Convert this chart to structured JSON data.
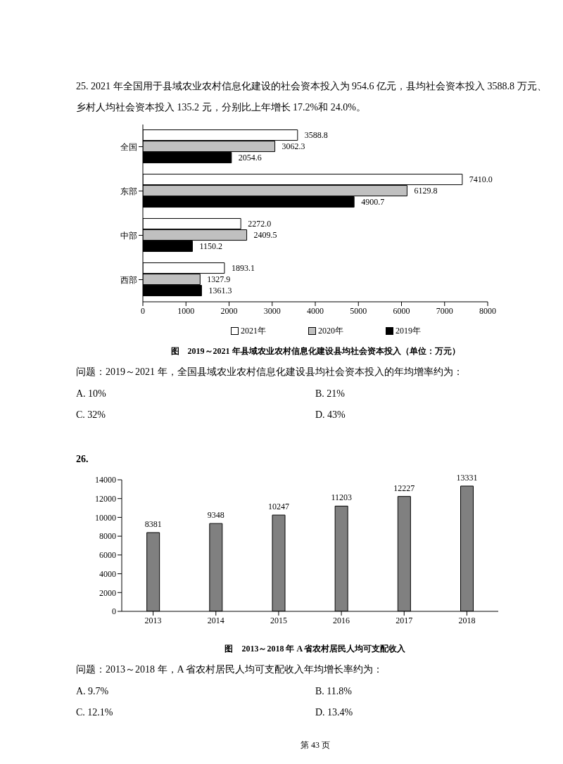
{
  "chart_data": [
    {
      "type": "bar",
      "orientation": "horizontal",
      "title": "图　2019～2021 年县域农业农村信息化建设县均社会资本投入（单位：万元）",
      "categories": [
        "全国",
        "东部",
        "中部",
        "西部"
      ],
      "series": [
        {
          "name": "2021年",
          "color": "#ffffff",
          "values": [
            3588.8,
            7410.0,
            2272.0,
            1893.1
          ],
          "value_labels": [
            "3588.8",
            "7410.0",
            "2272.0",
            "1893.1"
          ]
        },
        {
          "name": "2020年",
          "color": "#c0c0c0",
          "values": [
            3062.3,
            6129.8,
            2409.5,
            1327.9
          ],
          "value_labels": [
            "3062.3",
            "6129.8",
            "2409.5",
            "1327.9"
          ]
        },
        {
          "name": "2019年",
          "color": "#000000",
          "values": [
            2054.6,
            4900.7,
            1150.2,
            1361.3
          ],
          "value_labels": [
            "2054.6",
            "4900.7",
            "1150.2",
            "1361.3"
          ]
        }
      ],
      "xlim": [
        0,
        8000
      ],
      "xticks": [
        0,
        1000,
        2000,
        3000,
        4000,
        5000,
        6000,
        7000,
        8000
      ],
      "grid": false,
      "legend": "bottom",
      "annotations": [
        "25. 2021 年全国用于县域农业农村信息化建设的社会资本投入为 954.6 亿元，县均社会资本投入 3588.8 万元、乡村人均社会资本投入 135.2 元，分别比上年增长 17.2%和 24.0%。",
        "问题：2019～2021 年，全国县域农业农村信息化建设县均社会资本投入的年均增率约为：",
        "A. 10%",
        "B. 21%",
        "C. 32%",
        "D. 43%"
      ]
    },
    {
      "type": "bar",
      "title": "图　2013～2018 年 A 省农村居民人均可支配收入",
      "categories": [
        "2013",
        "2014",
        "2015",
        "2016",
        "2017",
        "2018"
      ],
      "values": [
        8381,
        9348,
        10247,
        11203,
        12227,
        13331
      ],
      "color": "#808080",
      "ylim": [
        0,
        14000
      ],
      "yticks": [
        0,
        2000,
        4000,
        6000,
        8000,
        10000,
        12000,
        14000
      ],
      "grid": false,
      "data_labels": true,
      "annotations": [
        "26.",
        "问题：2013～2018 年，A 省农村居民人均可支配收入年均增长率约为：",
        "A. 9.7%",
        "B. 11.8%",
        "C. 12.1%",
        "D. 13.4%",
        "第 43 页"
      ]
    }
  ]
}
